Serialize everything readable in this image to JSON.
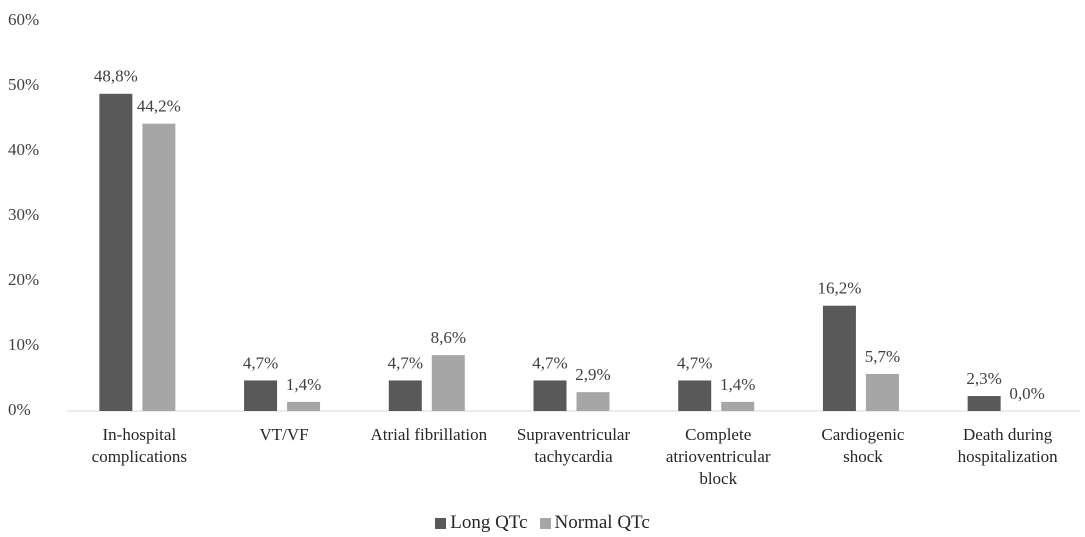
{
  "chart_data": {
    "type": "bar",
    "categories": [
      "In-hospital\ncomplications",
      "VT/VF",
      "Atrial fibrillation",
      "Supraventricular\ntachycardia",
      "Complete\natrioventricular\nblock",
      "Cardiogenic\nshock",
      "Death during\nhospitalization"
    ],
    "series": [
      {
        "name": "Long QTc",
        "color": "#595959",
        "values": [
          48.8,
          4.7,
          4.7,
          4.7,
          4.7,
          16.2,
          2.3
        ],
        "value_labels": [
          "48,8%",
          "4,7%",
          "4,7%",
          "4,7%",
          "4,7%",
          "16,2%",
          "2,3%"
        ]
      },
      {
        "name": "Normal QTc",
        "color": "#a6a6a6",
        "values": [
          44.2,
          1.4,
          8.6,
          2.9,
          1.4,
          5.7,
          0.0
        ],
        "value_labels": [
          "44,2%",
          "1,4%",
          "8,6%",
          "2,9%",
          "1,4%",
          "5,7%",
          "0,0%"
        ]
      }
    ],
    "ylim": [
      0,
      60
    ],
    "yticks": [
      {
        "value": 0,
        "label": "0%"
      },
      {
        "value": 10,
        "label": "10%"
      },
      {
        "value": 20,
        "label": "20%"
      },
      {
        "value": 30,
        "label": "30%"
      },
      {
        "value": 40,
        "label": "40%"
      },
      {
        "value": 50,
        "label": "50%"
      },
      {
        "value": 60,
        "label": "60%"
      }
    ],
    "grid": false,
    "legend": "bottom"
  }
}
